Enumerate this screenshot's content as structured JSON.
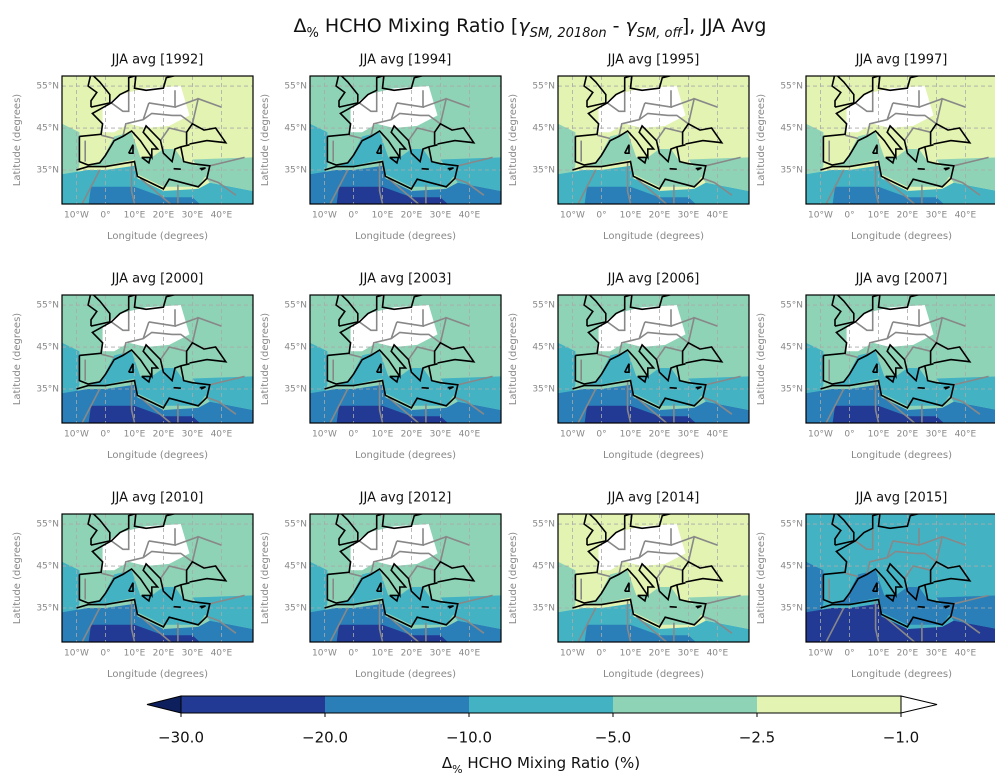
{
  "title_parts": [
    {
      "text": "Δ"
    },
    {
      "text": "%",
      "style": "sub"
    },
    {
      "text": " HCHO Mixing Ratio ["
    },
    {
      "text": "γ",
      "style": "italic"
    },
    {
      "text": "SM, 2018on",
      "style": "sub-italic"
    },
    {
      "text": " - "
    },
    {
      "text": "γ",
      "style": "italic"
    },
    {
      "text": "SM, off",
      "style": "sub-italic"
    },
    {
      "text": "], JJA Avg"
    }
  ],
  "panels": [
    {
      "title": "JJA avg [1992]"
    },
    {
      "title": "JJA avg [1994]"
    },
    {
      "title": "JJA avg [1995]"
    },
    {
      "title": "JJA avg [1997]"
    },
    {
      "title": "JJA avg [2000]"
    },
    {
      "title": "JJA avg [2003]"
    },
    {
      "title": "JJA avg [2006]"
    },
    {
      "title": "JJA avg [2007]"
    },
    {
      "title": "JJA avg [2010]"
    },
    {
      "title": "JJA avg [2012]"
    },
    {
      "title": "JJA avg [2014]"
    },
    {
      "title": "JJA avg [2015]"
    }
  ],
  "axes": {
    "xlabel": "Longitude (degrees)",
    "ylabel": "Latitude (degrees)",
    "xticks": [
      {
        "value": -10,
        "label": "10°W"
      },
      {
        "value": 0,
        "label": "0°"
      },
      {
        "value": 10,
        "label": "10°E"
      },
      {
        "value": 20,
        "label": "20°E"
      },
      {
        "value": 30,
        "label": "30°E"
      },
      {
        "value": 40,
        "label": "40°E"
      }
    ],
    "yticks": [
      {
        "value": 55,
        "label": "55°N"
      },
      {
        "value": 45,
        "label": "45°N"
      },
      {
        "value": 35,
        "label": "35°N"
      }
    ],
    "grid": true
  },
  "colorbar": {
    "ticks": [
      {
        "value": -30,
        "label": "−30.0"
      },
      {
        "value": -20,
        "label": "−20.0"
      },
      {
        "value": -10,
        "label": "−10.0"
      },
      {
        "value": -5,
        "label": "−5.0"
      },
      {
        "value": -2.5,
        "label": "−2.5"
      },
      {
        "value": -1,
        "label": "−1.0"
      }
    ],
    "colors": [
      "#233a94",
      "#2b7fb8",
      "#43b3c4",
      "#8fd3b7",
      "#e2f3b2"
    ],
    "extend_colors": {
      "min": "#0e1f5e",
      "max": "#ffffff"
    },
    "label_parts": [
      {
        "text": "Δ"
      },
      {
        "text": "%",
        "style": "sub"
      },
      {
        "text": " HCHO Mixing Ratio (%)"
      }
    ]
  }
}
